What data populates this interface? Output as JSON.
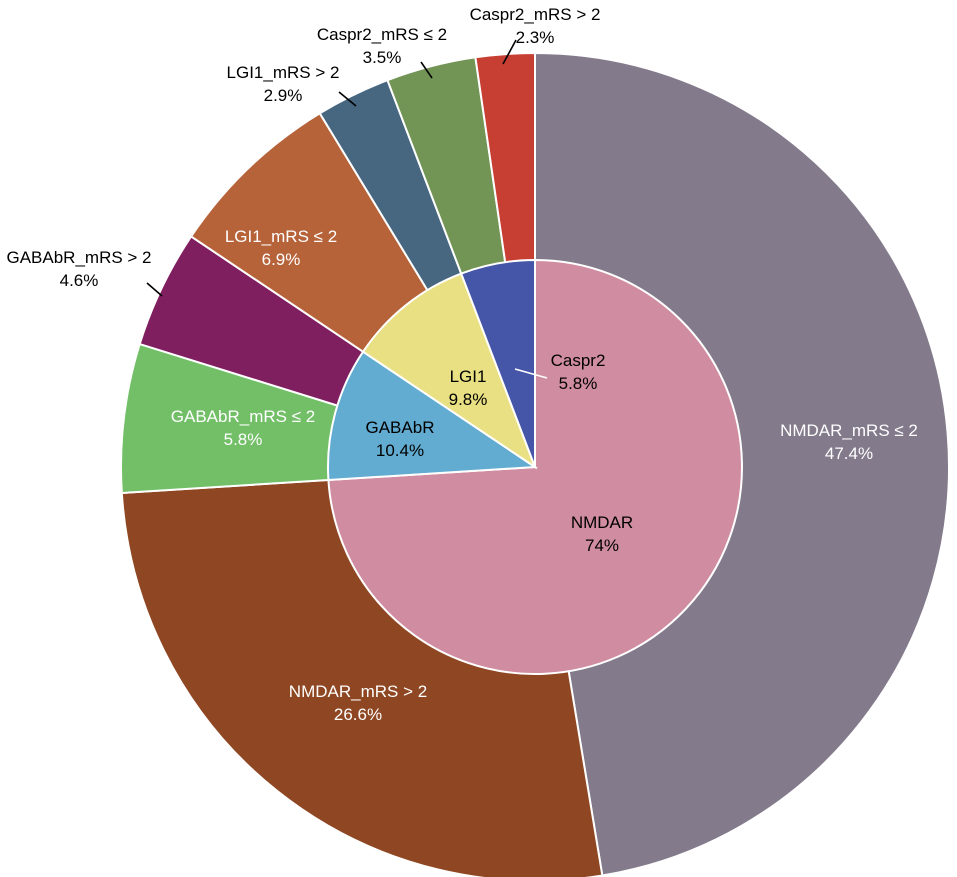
{
  "chart_data": {
    "type": "pie",
    "title": "",
    "rings": [
      {
        "ring": "outer",
        "slices": [
          {
            "label": "NMDAR_mRS ≤ 2",
            "value": 47.4,
            "color": "#837a8b",
            "text_color": "#ffffff"
          },
          {
            "label": "NMDAR_mRS > 2",
            "value": 26.6,
            "color": "#8e4722",
            "text_color": "#ffffff"
          },
          {
            "label": "GABAbR_mRS ≤ 2",
            "value": 5.8,
            "color": "#72bf68",
            "text_color": "#ffffff"
          },
          {
            "label": "GABAbR_mRS > 2",
            "value": 4.6,
            "color": "#7f1f5f",
            "text_color": "#000000"
          },
          {
            "label": "LGI1_mRS ≤ 2",
            "value": 6.9,
            "color": "#b6633a",
            "text_color": "#ffffff"
          },
          {
            "label": "LGI1_mRS > 2",
            "value": 2.9,
            "color": "#476781",
            "text_color": "#000000"
          },
          {
            "label": "Caspr2_mRS ≤ 2",
            "value": 3.5,
            "color": "#729556",
            "text_color": "#000000"
          },
          {
            "label": "Caspr2_mRS > 2",
            "value": 2.3,
            "color": "#c73f33",
            "text_color": "#000000"
          }
        ]
      },
      {
        "ring": "inner",
        "slices": [
          {
            "label": "NMDAR",
            "value": 74,
            "color": "#d08da1",
            "text_color": "#000000"
          },
          {
            "label": "GABAbR",
            "value": 10.4,
            "color": "#62abd1",
            "text_color": "#000000"
          },
          {
            "label": "LGI1",
            "value": 9.8,
            "color": "#e9e083",
            "text_color": "#000000"
          },
          {
            "label": "Caspr2",
            "value": 5.8,
            "color": "#4555a7",
            "text_color": "#000000"
          }
        ]
      }
    ]
  }
}
